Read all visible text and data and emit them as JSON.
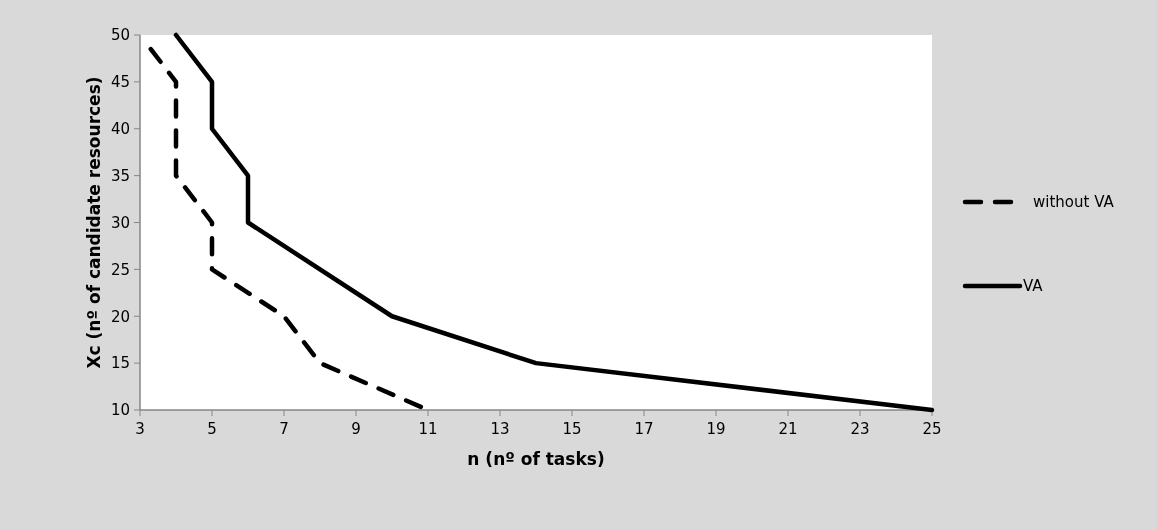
{
  "chart_data": {
    "type": "line",
    "xlabel": "n (nº of tasks)",
    "ylabel": "Xc (nº of candidate resources)",
    "xlim": [
      3,
      25
    ],
    "xticks": [
      3,
      5,
      7,
      9,
      11,
      13,
      15,
      17,
      19,
      21,
      23,
      25
    ],
    "ylim": [
      10,
      50
    ],
    "yticks": [
      10,
      15,
      20,
      25,
      30,
      35,
      40,
      45,
      50
    ],
    "grid": false,
    "legend": "right",
    "marker": "none",
    "series": [
      {
        "name": "without VA",
        "color": "#000000",
        "line_style": "dashed",
        "x": [
          3.3,
          4,
          4,
          5,
          5,
          7,
          8,
          11
        ],
        "values": [
          48.5,
          45,
          35,
          30,
          25,
          20,
          15,
          10
        ]
      },
      {
        "name": "VA",
        "color": "#000000",
        "line_style": "solid",
        "x": [
          4,
          5,
          5,
          6,
          6,
          10,
          14,
          25
        ],
        "values": [
          50,
          45,
          40,
          35,
          30,
          20,
          15,
          10
        ]
      }
    ]
  }
}
